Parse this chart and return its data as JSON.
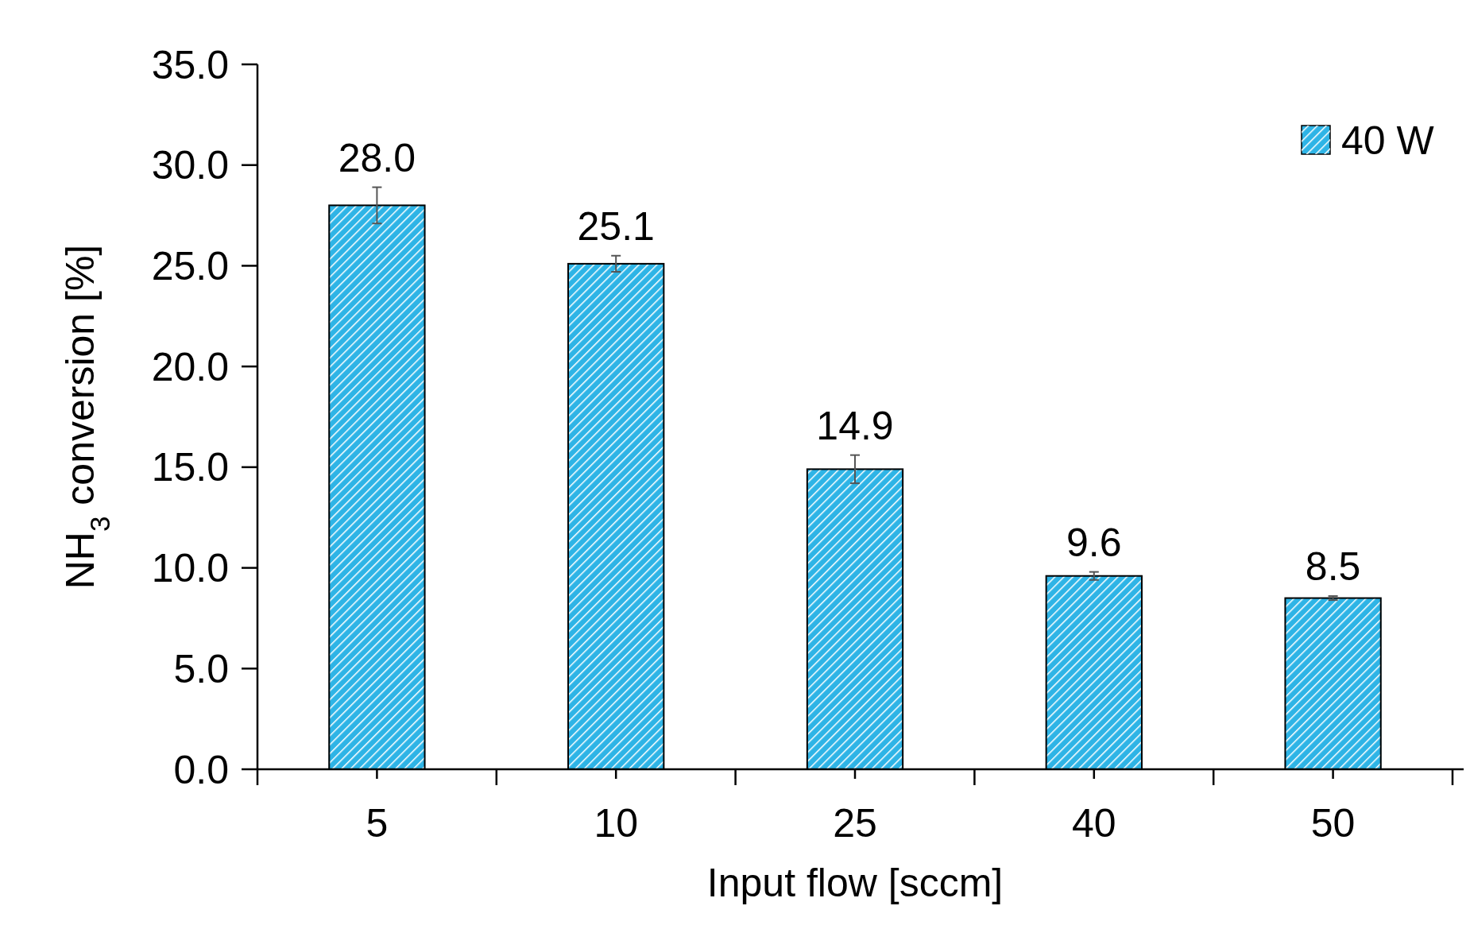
{
  "chart_data": {
    "type": "bar",
    "xlabel": "Input flow [sccm]",
    "ylabel": "NH$_{3}$ conversion [%]",
    "categories": [
      "5",
      "10",
      "25",
      "40",
      "50"
    ],
    "series": [
      {
        "name": "40 W",
        "color": "#2eb4e6",
        "values": [
          28.0,
          25.1,
          14.9,
          9.6,
          8.5
        ],
        "errors": [
          0.9,
          0.4,
          0.7,
          0.2,
          0.1
        ],
        "value_labels": [
          "28.0",
          "25.1",
          "14.9",
          "9.6",
          "8.5"
        ]
      }
    ],
    "ylim": [
      0,
      35
    ],
    "yticks": [
      {
        "value": 0,
        "label": "0.0"
      },
      {
        "value": 5,
        "label": "5.0"
      },
      {
        "value": 10,
        "label": "10.0"
      },
      {
        "value": 15,
        "label": "15.0"
      },
      {
        "value": 20,
        "label": "20.0"
      },
      {
        "value": 25,
        "label": "25.0"
      },
      {
        "value": 30,
        "label": "30.0"
      },
      {
        "value": 35,
        "label": "35.0"
      }
    ],
    "legend": "top right",
    "grid": false
  }
}
